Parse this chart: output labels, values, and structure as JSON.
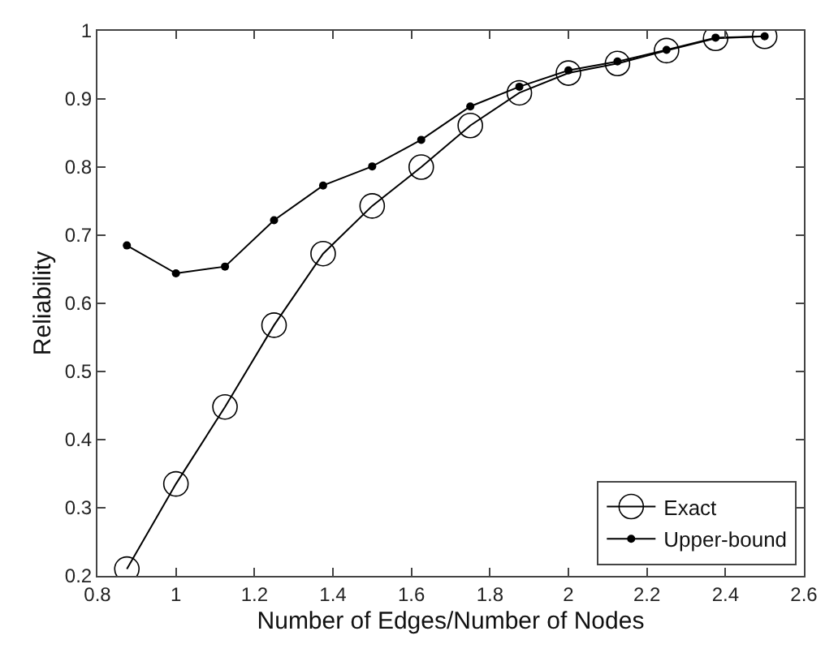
{
  "chart_data": {
    "type": "line",
    "xlabel": "Number of Edges/Number of Nodes",
    "ylabel": "Reliability",
    "x": [
      0.875,
      1,
      1.125,
      1.25,
      1.375,
      1.5,
      1.625,
      1.75,
      1.875,
      2,
      2.125,
      2.25,
      2.375,
      2.5
    ],
    "series": [
      {
        "name": "Exact",
        "color": "#000000",
        "marker": "circle",
        "values": [
          0.21,
          0.335,
          0.448,
          0.568,
          0.673,
          0.743,
          0.8,
          0.861,
          0.909,
          0.938,
          0.952,
          0.971,
          0.989,
          0.992
        ]
      },
      {
        "name": "Upper-bound",
        "color": "#000000",
        "marker": "circle",
        "values": [
          0.685,
          0.644,
          0.654,
          0.722,
          0.773,
          0.801,
          0.84,
          0.889,
          0.918,
          0.942,
          0.955,
          0.972,
          0.99,
          0.992
        ]
      }
    ],
    "xlim": [
      0.8,
      2.6
    ],
    "xticks": [
      0.8,
      1,
      1.2,
      1.4,
      1.6,
      1.8,
      2,
      2.2,
      2.4,
      2.6
    ],
    "ylim": [
      0.2,
      1
    ],
    "yticks": [
      0.2,
      0.3,
      0.4,
      0.5,
      0.6,
      0.7,
      0.8,
      0.9,
      1
    ],
    "legend": "bottom right",
    "line_style": "solid"
  }
}
